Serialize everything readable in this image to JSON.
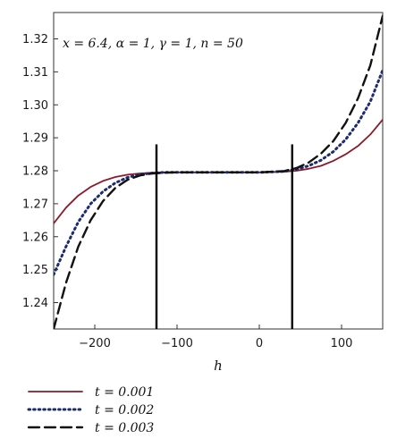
{
  "chart_data": {
    "type": "line",
    "annotation": "x = 6.4, α = 1, γ = 1, n = 50",
    "xlabel": "h",
    "ylabel": "",
    "xlim": [
      -250,
      150
    ],
    "ylim": [
      1.232,
      1.328
    ],
    "xticks": [
      -200,
      -100,
      0,
      100
    ],
    "xtick_labels": [
      "−200",
      "−100",
      "0",
      "100"
    ],
    "yticks": [
      1.24,
      1.25,
      1.26,
      1.27,
      1.28,
      1.29,
      1.3,
      1.31,
      1.32
    ],
    "ytick_labels": [
      "1.24",
      "1.25",
      "1.26",
      "1.27",
      "1.28",
      "1.29",
      "1.30",
      "1.31",
      "1.32"
    ],
    "grid": false,
    "legend_position": "bottom-left",
    "vertical_lines": [
      {
        "x": -125,
        "y_top": 1.288,
        "y_bottom": 1.232
      },
      {
        "x": 40,
        "y_top": 1.288,
        "y_bottom": 1.232
      }
    ],
    "series": [
      {
        "name": "t = 0.001",
        "color": "#8b1a2b",
        "style": "solid",
        "x": [
          -250,
          -235,
          -220,
          -205,
          -190,
          -175,
          -160,
          -145,
          -130,
          -115,
          -100,
          -50,
          0,
          30,
          45,
          60,
          75,
          90,
          105,
          120,
          135,
          150
        ],
        "y": [
          1.264,
          1.2688,
          1.2725,
          1.2751,
          1.2769,
          1.2781,
          1.2788,
          1.2792,
          1.2794,
          1.2795,
          1.2795,
          1.2795,
          1.2795,
          1.2797,
          1.28,
          1.2806,
          1.2815,
          1.283,
          1.285,
          1.2875,
          1.291,
          1.2955
        ]
      },
      {
        "name": "t = 0.002",
        "color": "#1c2c6e",
        "style": "dotted",
        "x": [
          -250,
          -235,
          -220,
          -205,
          -190,
          -175,
          -160,
          -145,
          -130,
          -115,
          -100,
          -50,
          0,
          30,
          45,
          60,
          75,
          90,
          105,
          120,
          135,
          150
        ],
        "y": [
          1.2485,
          1.257,
          1.2645,
          1.27,
          1.2737,
          1.2763,
          1.278,
          1.2789,
          1.2793,
          1.2795,
          1.2795,
          1.2795,
          1.2795,
          1.2798,
          1.2804,
          1.2815,
          1.2832,
          1.2858,
          1.2895,
          1.2945,
          1.301,
          1.3105
        ]
      },
      {
        "name": "t = 0.003",
        "color": "#111111",
        "style": "dashed",
        "x": [
          -250,
          -235,
          -220,
          -205,
          -190,
          -175,
          -160,
          -145,
          -130,
          -115,
          -100,
          -50,
          0,
          30,
          45,
          60,
          75,
          90,
          105,
          120,
          135,
          150
        ],
        "y": [
          1.232,
          1.246,
          1.257,
          1.265,
          1.2708,
          1.2748,
          1.2773,
          1.2786,
          1.2792,
          1.2794,
          1.2795,
          1.2795,
          1.2795,
          1.2799,
          1.2808,
          1.2825,
          1.2852,
          1.289,
          1.2945,
          1.302,
          1.312,
          1.327
        ]
      }
    ]
  }
}
